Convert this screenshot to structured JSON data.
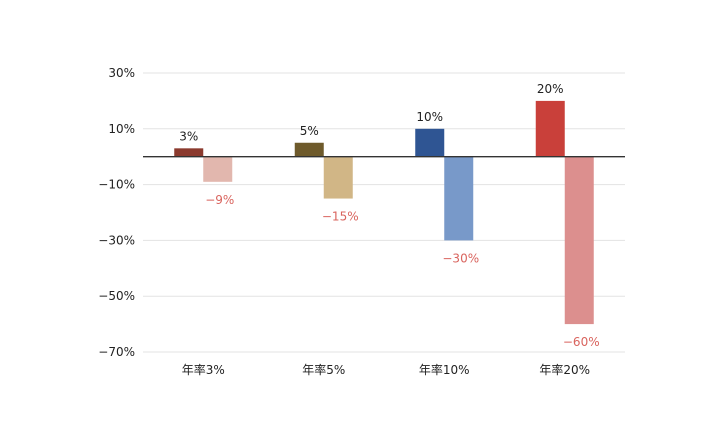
{
  "chart_data": {
    "type": "bar",
    "categories": [
      "年率3%",
      "年率5%",
      "年率10%",
      "年率20%"
    ],
    "series": [
      {
        "values": [
          3,
          5,
          10,
          20
        ],
        "labels": [
          "3%",
          "5%",
          "10%",
          "20%"
        ],
        "colors": [
          "#8b3a2e",
          "#6e5a2b",
          "#2f5593",
          "#c9403a"
        ],
        "label_color": "#222222"
      },
      {
        "values": [
          -9,
          -15,
          -30,
          -60
        ],
        "labels": [
          "−9%",
          "−15%",
          "−30%",
          "−60%"
        ],
        "colors": [
          "#e2b7ae",
          "#d1b686",
          "#7899c9",
          "#dc8f8e"
        ],
        "label_color": "#d9645e"
      }
    ],
    "ylim": [
      -70,
      30
    ],
    "yticks": [
      30,
      10,
      -10,
      -30,
      -50,
      -70
    ],
    "ytick_labels": [
      "30%",
      "10%",
      "−10%",
      "−30%",
      "−50%",
      "−70%"
    ],
    "grid": true,
    "legend": "none",
    "title": "",
    "xlabel": "",
    "ylabel": ""
  }
}
